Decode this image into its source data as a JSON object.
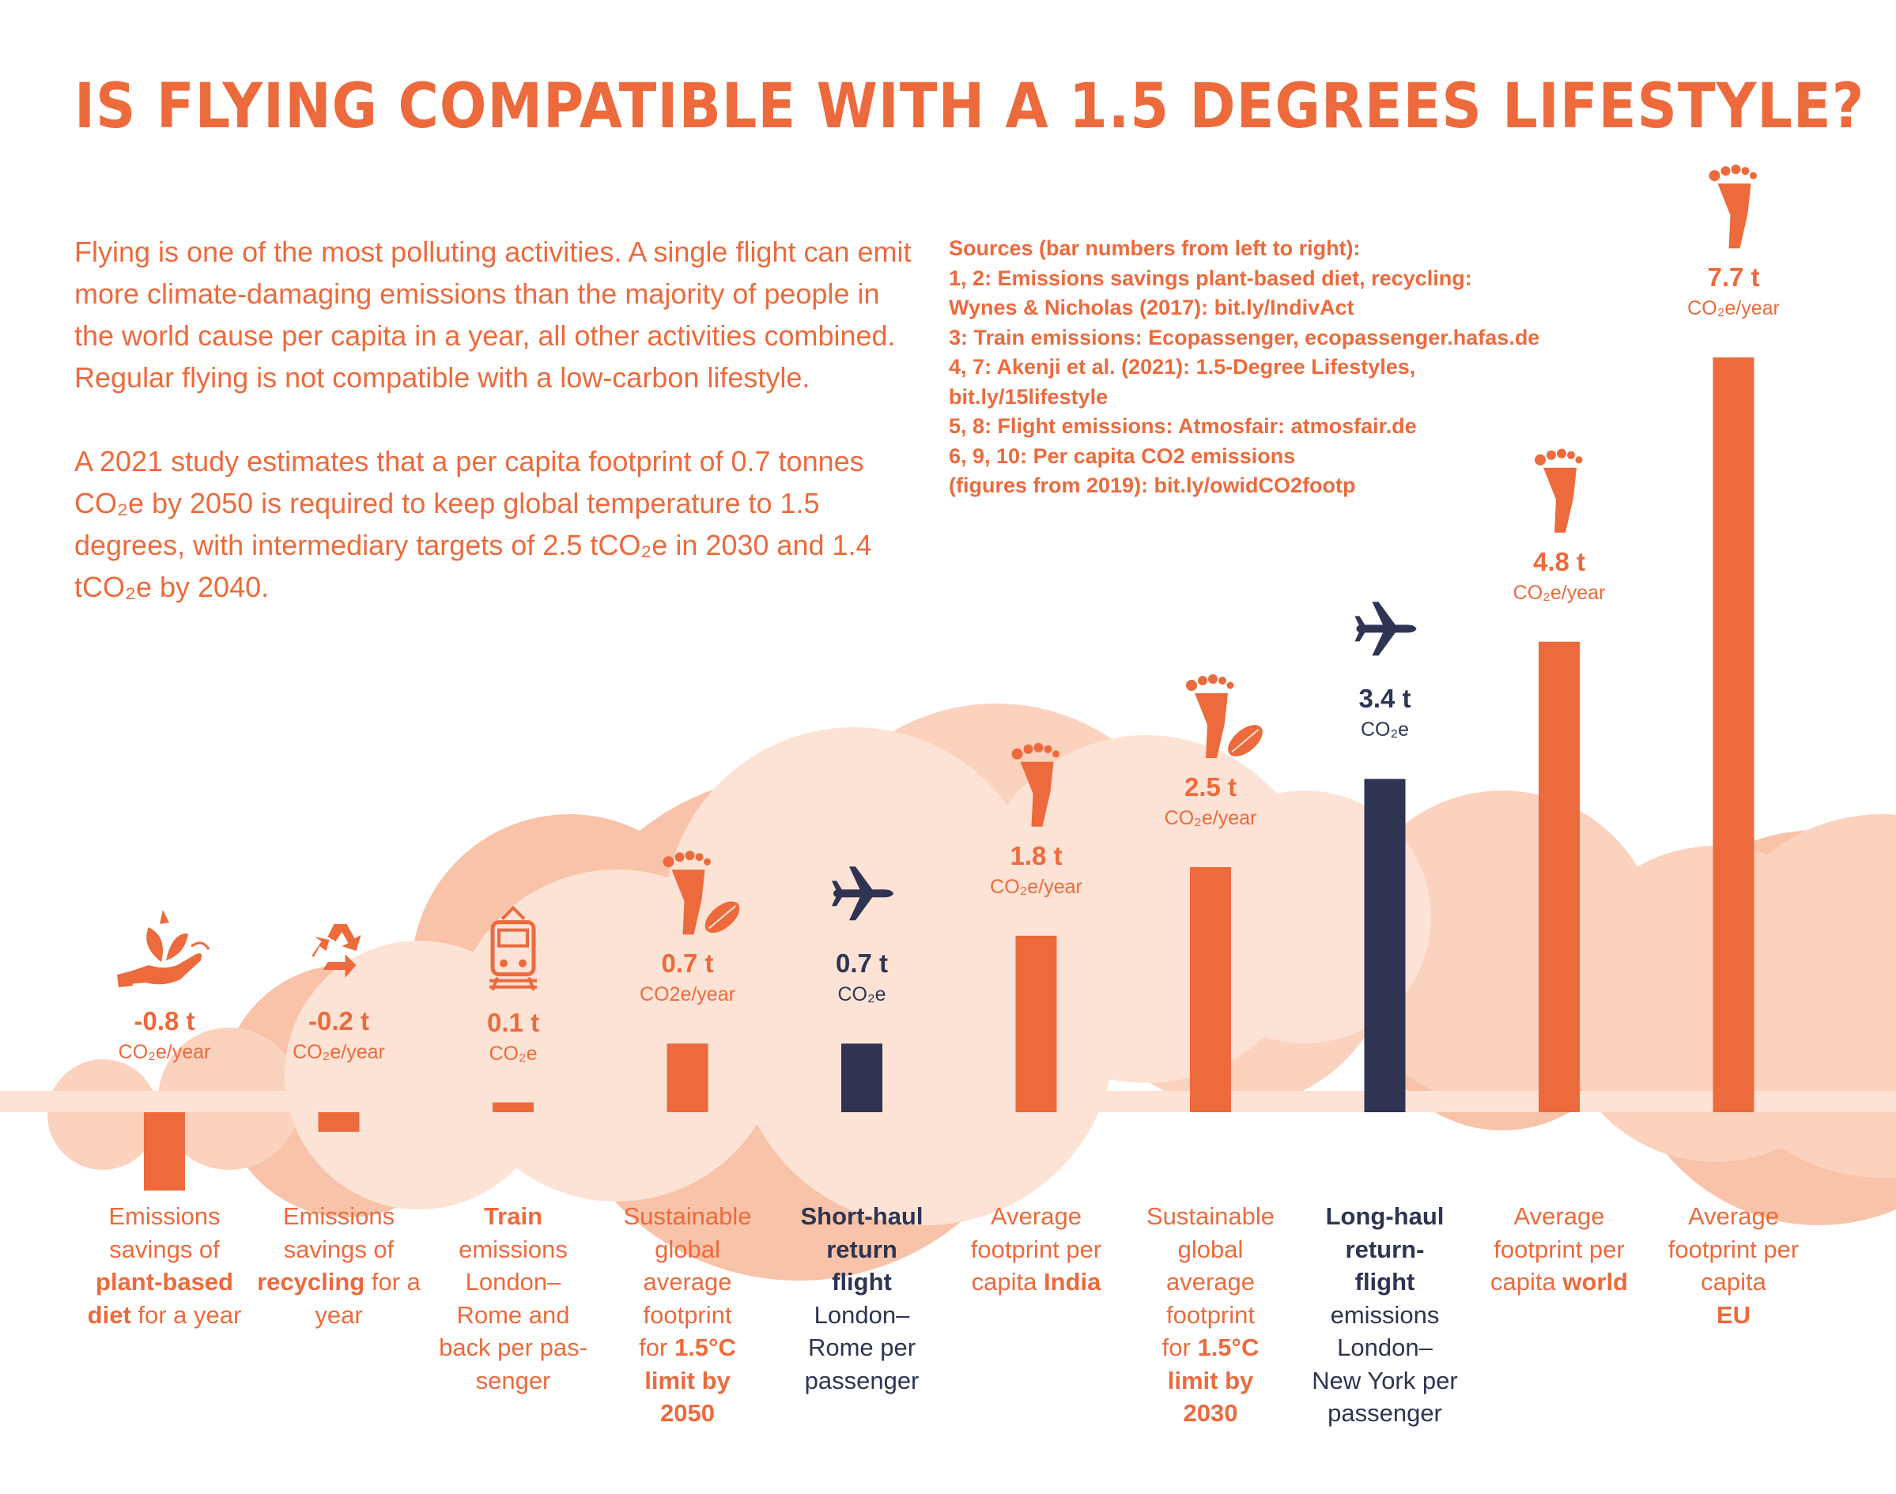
{
  "title": "IS FLYING COMPATIBLE WITH A 1.5 DEGREES LIFESTYLE?",
  "intro": {
    "paragraph1": "Flying is one of the most polluting activities. A single flight can emit more climate-damaging emissions than the majority of people in the world cause per capita in a year, all other activities combined. Regular flying is not compatible with a low-carbon lifestyle.",
    "paragraph2": "A 2021 study estimates that a per capita footprint of 0.7 tonnes CO₂e by 2050 is required to keep global temperature to 1.5 degrees, with intermediary targets of 2.5 tCO₂e in 2030 and 1.4 tCO₂e by 2040."
  },
  "sources": [
    "Sources (bar numbers from left to right):",
    "1, 2: Emissions savings plant-based diet, recycling:",
    "Wynes & Nicholas (2017): bit.ly/IndivAct",
    "3: Train emissions: Ecopassenger, ecopassenger.hafas.de",
    "4, 7: Akenji et al. (2021): 1.5-Degree Lifestyles,",
    "bit.ly/15lifestyle",
    "5, 8: Flight emissions: Atmosfair: atmosfair.de",
    "6, 9, 10: Per capita CO2 emissions",
    "(figures from 2019):  bit.ly/owidCO2footp"
  ],
  "colors": {
    "orange": "#ec6a3c",
    "navy": "#2e3451",
    "cloud_light": "#fde3d6",
    "cloud_mid": "#fbd2bd",
    "cloud_dark": "#f8c3a8"
  },
  "chart_data": {
    "type": "bar",
    "unit": "t CO₂e",
    "bars": [
      {
        "value": -0.8,
        "value_label": "-0.8 t",
        "unit_label": "CO₂e/year",
        "color": "#ec6a3c",
        "icon": "plant-hand-icon",
        "label_lines": [
          [
            [
              "Emissions",
              false
            ]
          ],
          [
            [
              "savings of",
              false
            ]
          ],
          [
            [
              "plant-based",
              true
            ]
          ],
          [
            [
              "diet",
              true
            ],
            [
              " for a year",
              false
            ]
          ]
        ]
      },
      {
        "value": -0.2,
        "value_label": "-0.2 t",
        "unit_label": "CO₂e/year",
        "color": "#ec6a3c",
        "icon": "recycle-icon",
        "label_lines": [
          [
            [
              "Emissions",
              false
            ]
          ],
          [
            [
              "savings of",
              false
            ]
          ],
          [
            [
              "recycling",
              true
            ],
            [
              " for a",
              false
            ]
          ],
          [
            [
              "year",
              false
            ]
          ]
        ]
      },
      {
        "value": 0.1,
        "value_label": "0.1 t",
        "unit_label": "CO₂e",
        "color": "#ec6a3c",
        "icon": "train-icon",
        "label_lines": [
          [
            [
              "Train",
              true
            ]
          ],
          [
            [
              "emissions",
              false
            ]
          ],
          [
            [
              "London–",
              false
            ]
          ],
          [
            [
              "Rome and",
              false
            ]
          ],
          [
            [
              "back per pas-",
              false
            ]
          ],
          [
            [
              "senger",
              false
            ]
          ]
        ]
      },
      {
        "value": 0.7,
        "value_label": "0.7 t",
        "unit_label": "CO2e/year",
        "color": "#ec6a3c",
        "icon": "footprint-leaf-icon",
        "label_lines": [
          [
            [
              "Sustainable",
              false
            ]
          ],
          [
            [
              "global",
              false
            ]
          ],
          [
            [
              "average",
              false
            ]
          ],
          [
            [
              "footprint",
              false
            ]
          ],
          [
            [
              "for ",
              false
            ],
            [
              "1.5°C",
              true
            ]
          ],
          [
            [
              "limit by",
              true
            ]
          ],
          [
            [
              "2050",
              true
            ]
          ]
        ]
      },
      {
        "value": 0.7,
        "value_label": "0.7 t",
        "unit_label": "CO₂e",
        "color": "#2e3451",
        "icon": "airplane-icon",
        "label_lines": [
          [
            [
              "Short-haul",
              true
            ]
          ],
          [
            [
              "return",
              true
            ]
          ],
          [
            [
              "flight",
              true
            ]
          ],
          [
            [
              "London–",
              false
            ]
          ],
          [
            [
              "Rome per",
              false
            ]
          ],
          [
            [
              "passenger",
              false
            ]
          ]
        ]
      },
      {
        "value": 1.8,
        "value_label": "1.8 t",
        "unit_label": "CO₂e/year",
        "color": "#ec6a3c",
        "icon": "footprint-icon",
        "label_lines": [
          [
            [
              "Average",
              false
            ]
          ],
          [
            [
              "footprint per",
              false
            ]
          ],
          [
            [
              "capita ",
              false
            ],
            [
              "India",
              true
            ]
          ]
        ]
      },
      {
        "value": 2.5,
        "value_label": "2.5 t",
        "unit_label": "CO₂e/year",
        "color": "#ec6a3c",
        "icon": "footprint-leaf-icon",
        "label_lines": [
          [
            [
              "Sustainable",
              false
            ]
          ],
          [
            [
              "global",
              false
            ]
          ],
          [
            [
              "average",
              false
            ]
          ],
          [
            [
              "footprint",
              false
            ]
          ],
          [
            [
              "for ",
              false
            ],
            [
              "1.5°C",
              true
            ]
          ],
          [
            [
              "limit by",
              true
            ]
          ],
          [
            [
              "2030",
              true
            ]
          ]
        ]
      },
      {
        "value": 3.4,
        "value_label": "3.4 t",
        "unit_label": "CO₂e",
        "color": "#2e3451",
        "icon": "airplane-icon",
        "label_lines": [
          [
            [
              "Long-haul",
              true
            ]
          ],
          [
            [
              "return-",
              true
            ]
          ],
          [
            [
              "flight",
              true
            ]
          ],
          [
            [
              "emissions",
              false
            ]
          ],
          [
            [
              "London–",
              false
            ]
          ],
          [
            [
              "New York per",
              false
            ]
          ],
          [
            [
              "passenger",
              false
            ]
          ]
        ]
      },
      {
        "value": 4.8,
        "value_label": "4.8 t",
        "unit_label": "CO₂e/year",
        "color": "#ec6a3c",
        "icon": "footprint-icon",
        "label_lines": [
          [
            [
              "Average",
              false
            ]
          ],
          [
            [
              "footprint per",
              false
            ]
          ],
          [
            [
              "capita ",
              false
            ],
            [
              "world",
              true
            ]
          ]
        ]
      },
      {
        "value": 7.7,
        "value_label": "7.7 t",
        "unit_label": "CO₂e/year",
        "color": "#ec6a3c",
        "icon": "footprint-icon",
        "label_lines": [
          [
            [
              "Average",
              false
            ]
          ],
          [
            [
              "footprint per",
              false
            ]
          ],
          [
            [
              "capita",
              false
            ]
          ],
          [
            [
              "EU",
              true
            ]
          ]
        ]
      }
    ]
  }
}
